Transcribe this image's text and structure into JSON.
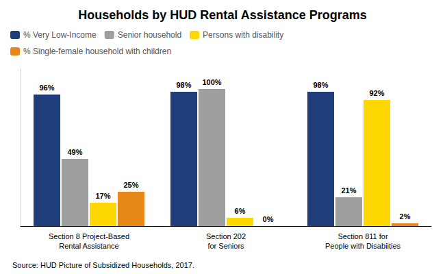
{
  "chart_data": {
    "type": "bar",
    "title": "Households by HUD Rental Assistance Programs",
    "categories": [
      "Section 8 Project-Based\nRental Assistance",
      "Section 202\nfor Seniors",
      "Section 811 for\nPeople with Disabiities"
    ],
    "series": [
      {
        "name": "% Very Low-Income",
        "color": "#1F3D7A",
        "values": [
          96,
          98,
          98
        ],
        "value_labels": [
          "96%",
          "98%",
          "98%"
        ]
      },
      {
        "name": "Senior household",
        "color": "#9E9E9E",
        "values": [
          49,
          100,
          21
        ],
        "value_labels": [
          "49%",
          "100%",
          "21%"
        ]
      },
      {
        "name": "Persons with disability",
        "color": "#FFD700",
        "values": [
          17,
          6,
          92
        ],
        "value_labels": [
          "17%",
          "6%",
          "92%"
        ]
      },
      {
        "name": "% Single-female household with children",
        "color": "#E8871A",
        "values": [
          25,
          0,
          2
        ],
        "value_labels": [
          "25%",
          "0%",
          "2%"
        ]
      }
    ],
    "ylim": [
      0,
      115
    ],
    "grid": false,
    "legend": "upper left",
    "data_labels": true,
    "tick_labels": "x",
    "annotations": [
      "Source: HUD Picture of Subsidized Households, 2017."
    ]
  }
}
